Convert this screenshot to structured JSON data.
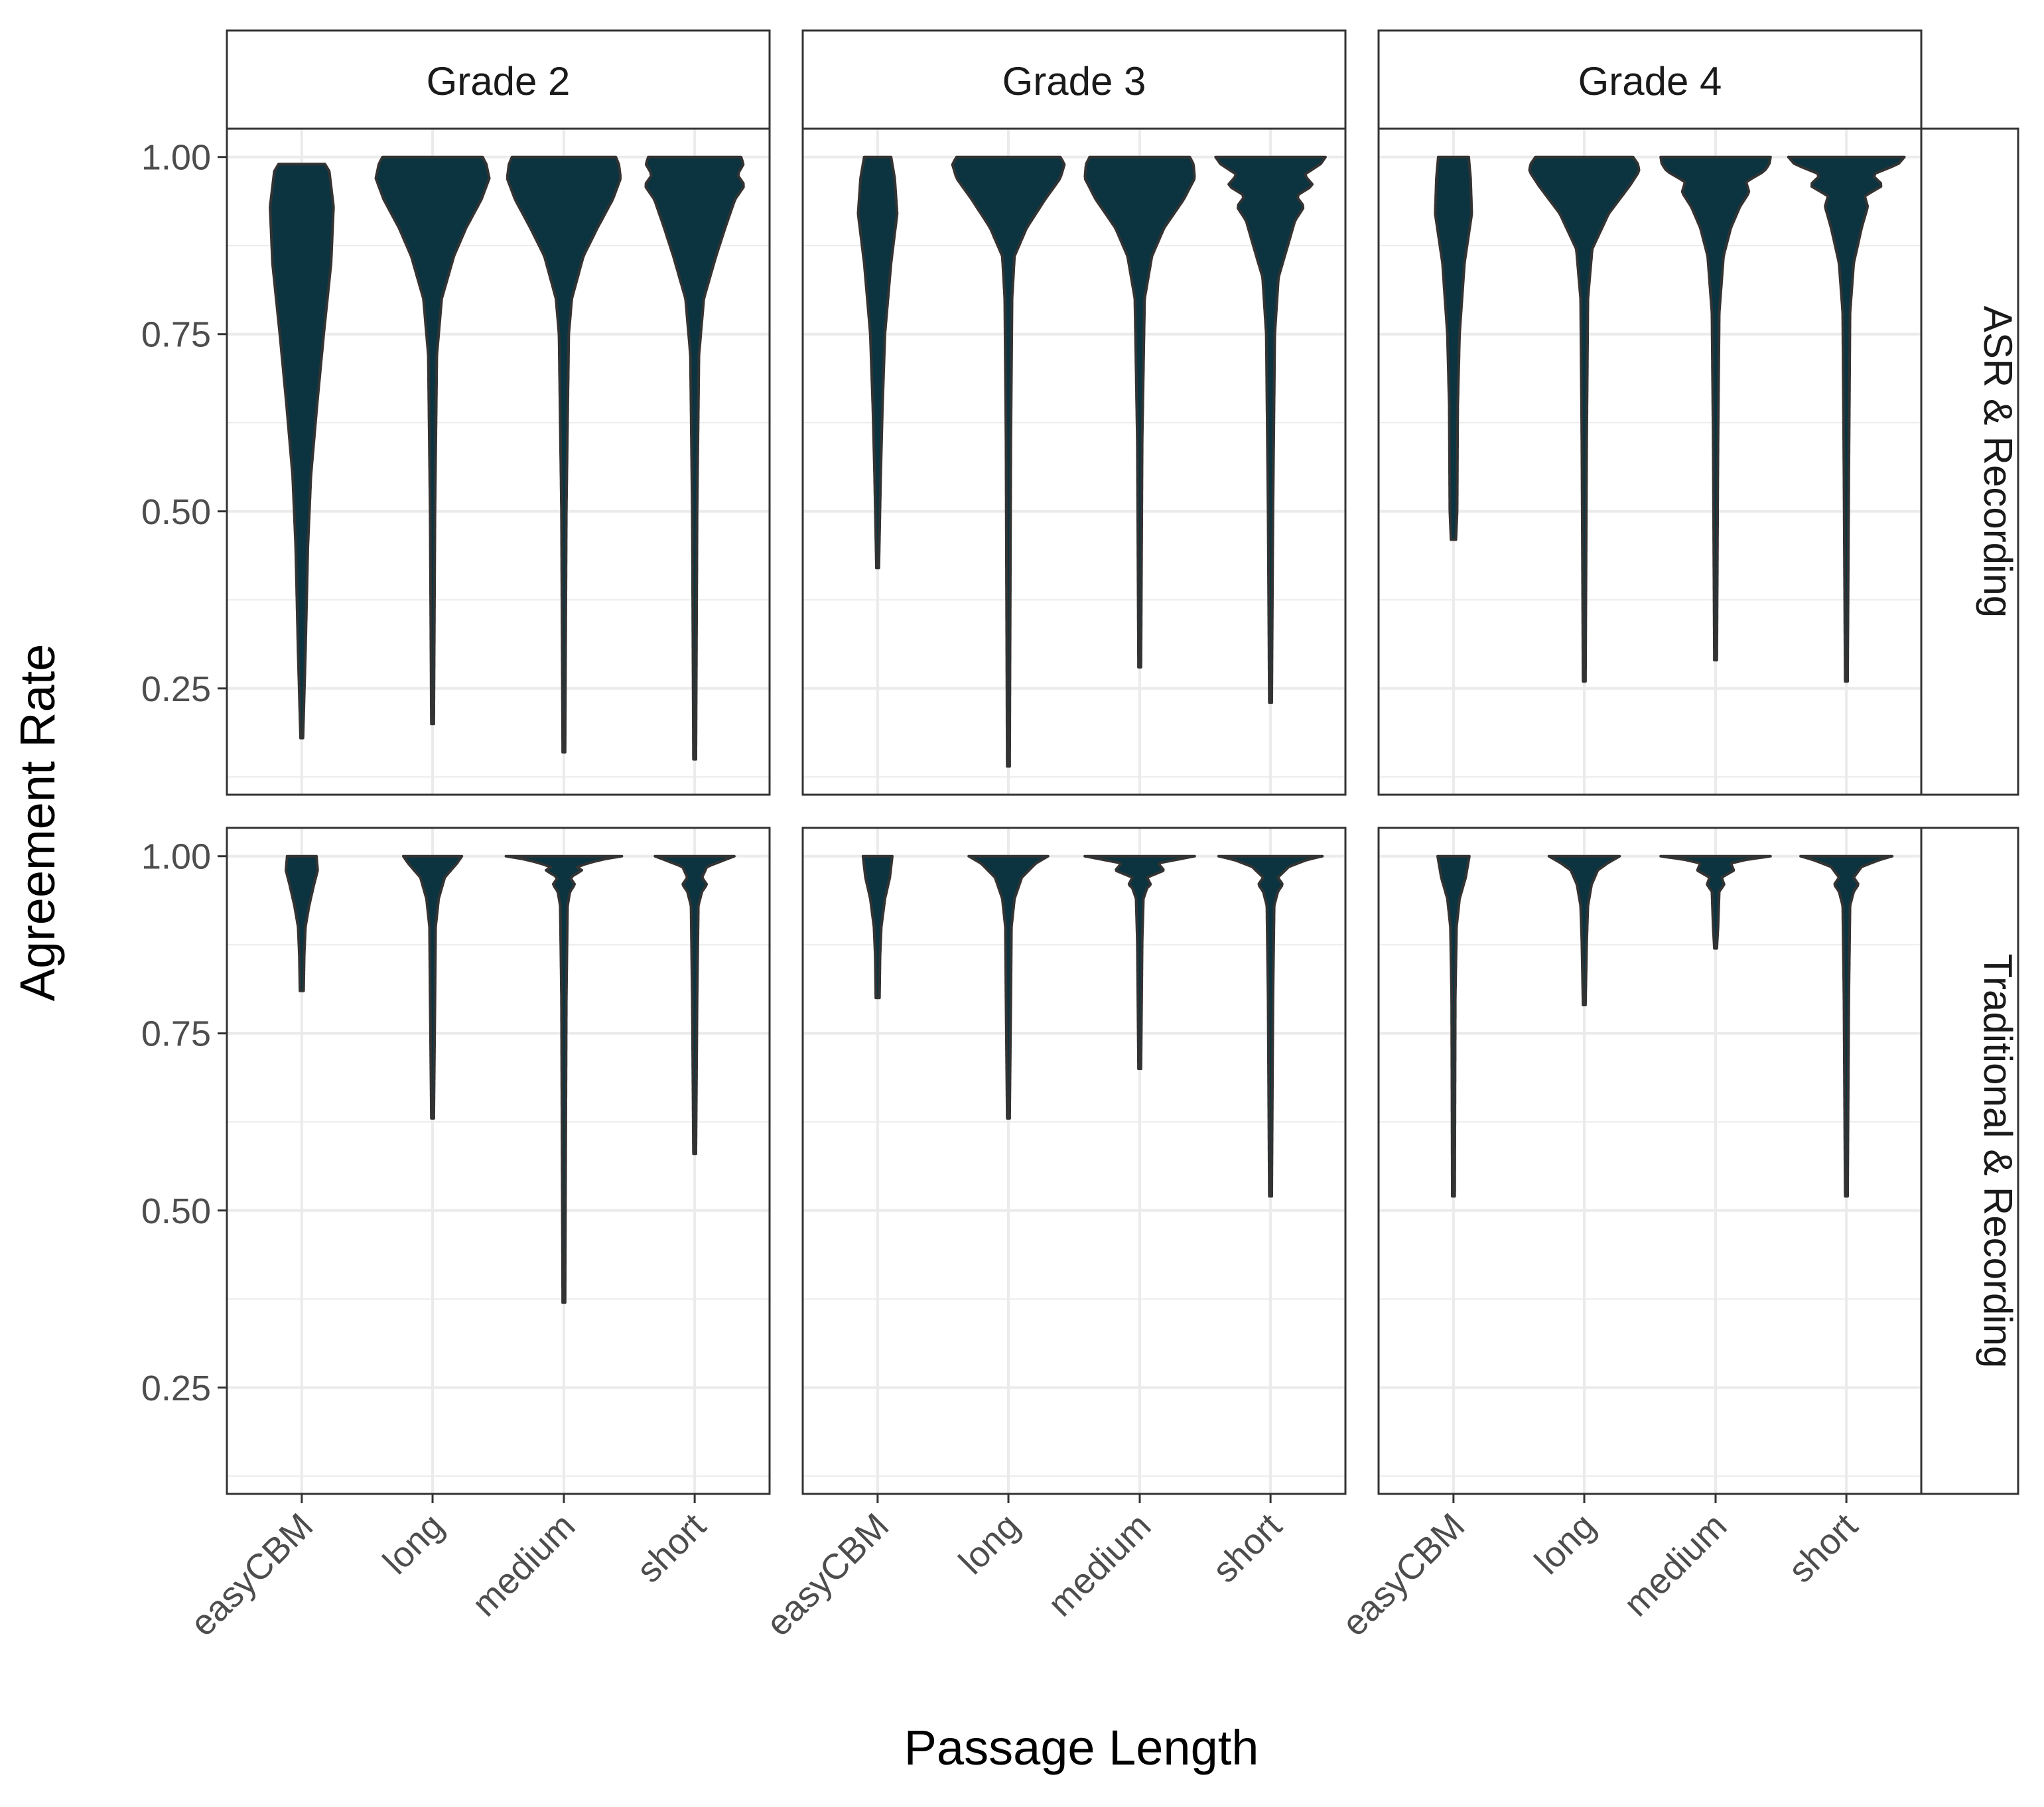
{
  "chart_data": {
    "type": "violin",
    "xlabel": "Passage Length",
    "ylabel": "Agreement Rate",
    "ylim": [
      0.1,
      1.04
    ],
    "yticks": [
      0.25,
      0.5,
      0.75,
      1.0
    ],
    "ytick_labels": [
      "0.25",
      "0.50",
      "0.75",
      "1.00"
    ],
    "categories": [
      "easyCBM",
      "long",
      "medium",
      "short"
    ],
    "columns": [
      "Grade 2",
      "Grade 3",
      "Grade 4"
    ],
    "rows": [
      "ASR & Recording",
      "Traditional & Recording"
    ],
    "fill_color": "#0b3440",
    "outline_color": "#333333",
    "grid": true,
    "violins": [
      [
        [
          {
            "min": 0.18,
            "max": 0.99,
            "profile": [
              [
                0.18,
                0.02
              ],
              [
                0.3,
                0.06
              ],
              [
                0.45,
                0.1
              ],
              [
                0.55,
                0.15
              ],
              [
                0.65,
                0.25
              ],
              [
                0.75,
                0.36
              ],
              [
                0.85,
                0.48
              ],
              [
                0.93,
                0.52
              ],
              [
                0.98,
                0.45
              ],
              [
                0.99,
                0.38
              ]
            ]
          },
          {
            "min": 0.2,
            "max": 1.0,
            "profile": [
              [
                0.2,
                0.02
              ],
              [
                0.5,
                0.04
              ],
              [
                0.72,
                0.07
              ],
              [
                0.8,
                0.15
              ],
              [
                0.86,
                0.35
              ],
              [
                0.9,
                0.55
              ],
              [
                0.94,
                0.8
              ],
              [
                0.97,
                0.93
              ],
              [
                0.99,
                0.88
              ],
              [
                1.0,
                0.82
              ]
            ]
          },
          {
            "min": 0.16,
            "max": 1.0,
            "profile": [
              [
                0.16,
                0.02
              ],
              [
                0.5,
                0.04
              ],
              [
                0.75,
                0.08
              ],
              [
                0.8,
                0.13
              ],
              [
                0.86,
                0.32
              ],
              [
                0.9,
                0.55
              ],
              [
                0.94,
                0.8
              ],
              [
                0.97,
                0.93
              ],
              [
                0.99,
                0.9
              ],
              [
                1.0,
                0.85
              ]
            ]
          },
          {
            "min": 0.15,
            "max": 1.0,
            "profile": [
              [
                0.15,
                0.02
              ],
              [
                0.5,
                0.04
              ],
              [
                0.72,
                0.07
              ],
              [
                0.8,
                0.15
              ],
              [
                0.86,
                0.35
              ],
              [
                0.9,
                0.5
              ],
              [
                0.94,
                0.66
              ],
              [
                0.96,
                0.82
              ],
              [
                0.975,
                0.7
              ],
              [
                0.99,
                0.8
              ],
              [
                1.0,
                0.76
              ]
            ]
          }
        ],
        [
          {
            "min": 0.42,
            "max": 1.0,
            "profile": [
              [
                0.42,
                0.02
              ],
              [
                0.55,
                0.05
              ],
              [
                0.65,
                0.08
              ],
              [
                0.75,
                0.12
              ],
              [
                0.85,
                0.22
              ],
              [
                0.92,
                0.32
              ],
              [
                0.97,
                0.28
              ],
              [
                1.0,
                0.22
              ]
            ]
          },
          {
            "min": 0.14,
            "max": 1.0,
            "profile": [
              [
                0.14,
                0.02
              ],
              [
                0.6,
                0.04
              ],
              [
                0.8,
                0.06
              ],
              [
                0.86,
                0.1
              ],
              [
                0.9,
                0.3
              ],
              [
                0.94,
                0.6
              ],
              [
                0.97,
                0.85
              ],
              [
                0.99,
                0.92
              ],
              [
                1.0,
                0.85
              ]
            ]
          },
          {
            "min": 0.28,
            "max": 1.0,
            "profile": [
              [
                0.28,
                0.02
              ],
              [
                0.6,
                0.04
              ],
              [
                0.8,
                0.08
              ],
              [
                0.86,
                0.2
              ],
              [
                0.9,
                0.4
              ],
              [
                0.94,
                0.72
              ],
              [
                0.97,
                0.9
              ],
              [
                0.99,
                0.88
              ],
              [
                1.0,
                0.82
              ]
            ]
          },
          {
            "min": 0.23,
            "max": 1.0,
            "profile": [
              [
                0.23,
                0.02
              ],
              [
                0.5,
                0.04
              ],
              [
                0.75,
                0.07
              ],
              [
                0.83,
                0.13
              ],
              [
                0.88,
                0.3
              ],
              [
                0.91,
                0.4
              ],
              [
                0.93,
                0.55
              ],
              [
                0.945,
                0.42
              ],
              [
                0.96,
                0.7
              ],
              [
                0.975,
                0.55
              ],
              [
                0.99,
                0.82
              ],
              [
                1.0,
                0.9
              ]
            ]
          }
        ],
        [
          {
            "min": 0.46,
            "max": 1.0,
            "profile": [
              [
                0.46,
                0.04
              ],
              [
                0.5,
                0.06
              ],
              [
                0.65,
                0.07
              ],
              [
                0.75,
                0.1
              ],
              [
                0.85,
                0.18
              ],
              [
                0.92,
                0.3
              ],
              [
                0.97,
                0.28
              ],
              [
                1.0,
                0.25
              ]
            ]
          },
          {
            "min": 0.26,
            "max": 1.0,
            "profile": [
              [
                0.26,
                0.02
              ],
              [
                0.6,
                0.04
              ],
              [
                0.8,
                0.06
              ],
              [
                0.87,
                0.13
              ],
              [
                0.92,
                0.4
              ],
              [
                0.96,
                0.75
              ],
              [
                0.98,
                0.9
              ],
              [
                0.99,
                0.88
              ],
              [
                1.0,
                0.8
              ]
            ]
          },
          {
            "min": 0.29,
            "max": 1.0,
            "profile": [
              [
                0.29,
                0.02
              ],
              [
                0.6,
                0.04
              ],
              [
                0.78,
                0.06
              ],
              [
                0.86,
                0.13
              ],
              [
                0.9,
                0.25
              ],
              [
                0.93,
                0.4
              ],
              [
                0.95,
                0.55
              ],
              [
                0.965,
                0.5
              ],
              [
                0.98,
                0.8
              ],
              [
                0.99,
                0.88
              ],
              [
                1.0,
                0.9
              ]
            ]
          },
          {
            "min": 0.26,
            "max": 1.0,
            "profile": [
              [
                0.26,
                0.02
              ],
              [
                0.55,
                0.04
              ],
              [
                0.78,
                0.06
              ],
              [
                0.85,
                0.12
              ],
              [
                0.9,
                0.25
              ],
              [
                0.93,
                0.35
              ],
              [
                0.945,
                0.3
              ],
              [
                0.96,
                0.6
              ],
              [
                0.975,
                0.42
              ],
              [
                0.99,
                0.85
              ],
              [
                1.0,
                0.95
              ]
            ]
          }
        ]
      ],
      [
        [
          {
            "min": 0.81,
            "max": 1.0,
            "profile": [
              [
                0.81,
                0.03
              ],
              [
                0.86,
                0.04
              ],
              [
                0.9,
                0.06
              ],
              [
                0.93,
                0.12
              ],
              [
                0.96,
                0.2
              ],
              [
                0.98,
                0.26
              ],
              [
                1.0,
                0.24
              ]
            ]
          },
          {
            "min": 0.63,
            "max": 1.0,
            "profile": [
              [
                0.63,
                0.02
              ],
              [
                0.8,
                0.04
              ],
              [
                0.9,
                0.05
              ],
              [
                0.94,
                0.1
              ],
              [
                0.97,
                0.2
              ],
              [
                0.99,
                0.4
              ],
              [
                1.0,
                0.48
              ]
            ]
          },
          {
            "min": 0.37,
            "max": 1.0,
            "profile": [
              [
                0.37,
                0.02
              ],
              [
                0.8,
                0.04
              ],
              [
                0.93,
                0.06
              ],
              [
                0.95,
                0.1
              ],
              [
                0.96,
                0.18
              ],
              [
                0.97,
                0.1
              ],
              [
                0.98,
                0.3
              ],
              [
                0.985,
                0.2
              ],
              [
                0.995,
                0.6
              ],
              [
                1.0,
                0.95
              ]
            ]
          },
          {
            "min": 0.58,
            "max": 1.0,
            "profile": [
              [
                0.58,
                0.02
              ],
              [
                0.8,
                0.04
              ],
              [
                0.93,
                0.06
              ],
              [
                0.95,
                0.12
              ],
              [
                0.96,
                0.2
              ],
              [
                0.97,
                0.12
              ],
              [
                0.985,
                0.2
              ],
              [
                0.995,
                0.5
              ],
              [
                1.0,
                0.65
              ]
            ]
          }
        ],
        [
          {
            "min": 0.8,
            "max": 1.0,
            "profile": [
              [
                0.8,
                0.03
              ],
              [
                0.86,
                0.04
              ],
              [
                0.9,
                0.06
              ],
              [
                0.94,
                0.12
              ],
              [
                0.97,
                0.2
              ],
              [
                1.0,
                0.24
              ]
            ]
          },
          {
            "min": 0.63,
            "max": 1.0,
            "profile": [
              [
                0.63,
                0.02
              ],
              [
                0.8,
                0.04
              ],
              [
                0.9,
                0.05
              ],
              [
                0.94,
                0.1
              ],
              [
                0.97,
                0.22
              ],
              [
                0.99,
                0.45
              ],
              [
                1.0,
                0.65
              ]
            ]
          },
          {
            "min": 0.7,
            "max": 1.0,
            "profile": [
              [
                0.7,
                0.02
              ],
              [
                0.88,
                0.04
              ],
              [
                0.94,
                0.06
              ],
              [
                0.955,
                0.12
              ],
              [
                0.96,
                0.18
              ],
              [
                0.97,
                0.12
              ],
              [
                0.98,
                0.4
              ],
              [
                0.99,
                0.3
              ],
              [
                0.995,
                0.6
              ],
              [
                1.0,
                0.9
              ]
            ]
          },
          {
            "min": 0.52,
            "max": 1.0,
            "profile": [
              [
                0.52,
                0.02
              ],
              [
                0.8,
                0.04
              ],
              [
                0.93,
                0.06
              ],
              [
                0.95,
                0.12
              ],
              [
                0.96,
                0.2
              ],
              [
                0.97,
                0.12
              ],
              [
                0.985,
                0.3
              ],
              [
                0.995,
                0.6
              ],
              [
                1.0,
                0.85
              ]
            ]
          }
        ],
        [
          {
            "min": 0.52,
            "max": 1.0,
            "profile": [
              [
                0.52,
                0.02
              ],
              [
                0.8,
                0.03
              ],
              [
                0.9,
                0.05
              ],
              [
                0.94,
                0.1
              ],
              [
                0.97,
                0.2
              ],
              [
                1.0,
                0.26
              ]
            ]
          },
          {
            "min": 0.79,
            "max": 1.0,
            "profile": [
              [
                0.79,
                0.02
              ],
              [
                0.88,
                0.04
              ],
              [
                0.93,
                0.06
              ],
              [
                0.96,
                0.12
              ],
              [
                0.98,
                0.22
              ],
              [
                0.99,
                0.38
              ],
              [
                1.0,
                0.58
              ]
            ]
          },
          {
            "min": 0.87,
            "max": 1.0,
            "profile": [
              [
                0.87,
                0.02
              ],
              [
                0.9,
                0.04
              ],
              [
                0.95,
                0.06
              ],
              [
                0.96,
                0.14
              ],
              [
                0.97,
                0.1
              ],
              [
                0.98,
                0.3
              ],
              [
                0.99,
                0.25
              ],
              [
                0.995,
                0.5
              ],
              [
                1.0,
                0.9
              ]
            ]
          },
          {
            "min": 0.52,
            "max": 1.0,
            "profile": [
              [
                0.52,
                0.02
              ],
              [
                0.8,
                0.04
              ],
              [
                0.93,
                0.06
              ],
              [
                0.95,
                0.12
              ],
              [
                0.96,
                0.2
              ],
              [
                0.97,
                0.12
              ],
              [
                0.985,
                0.25
              ],
              [
                0.995,
                0.55
              ],
              [
                1.0,
                0.75
              ]
            ]
          }
        ]
      ]
    ]
  }
}
